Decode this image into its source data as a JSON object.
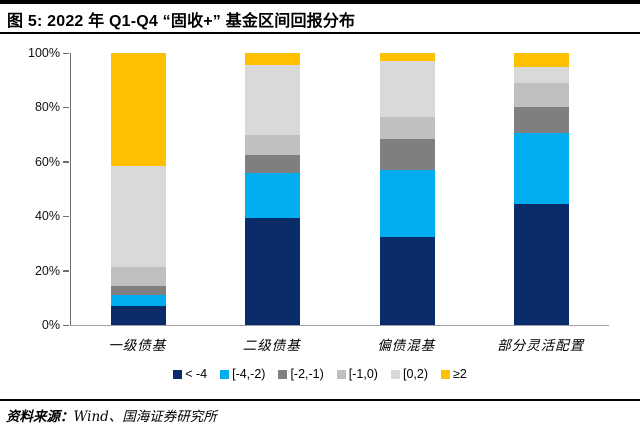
{
  "header": {
    "title": "图 5: 2022 年 Q1-Q4 “固收+” 基金区间回报分布"
  },
  "footer": {
    "source_label": "资料来源：",
    "source_text": "Wind、国海证券研究所"
  },
  "chart_data": {
    "type": "bar",
    "stacked": true,
    "percent_stacked": true,
    "title": "2022 年 Q1-Q4 “固收+” 基金区间回报分布",
    "xlabel": "",
    "ylabel": "",
    "ylim": [
      0,
      100
    ],
    "grid": false,
    "legend_position": "bottom",
    "y_ticks": [
      {
        "label": "100%",
        "value": 100
      },
      {
        "label": "80%",
        "value": 80
      },
      {
        "label": "60%",
        "value": 60
      },
      {
        "label": "40%",
        "value": 40
      },
      {
        "label": "20%",
        "value": 20
      },
      {
        "label": "0%",
        "value": 0
      }
    ],
    "categories": [
      "一级债基",
      "二级债基",
      "偏债混基",
      "部分灵活配置"
    ],
    "series": [
      {
        "name": "< -4",
        "color": "#0B2C6A",
        "values": [
          7,
          39.5,
          32.5,
          44.5
        ]
      },
      {
        "name": "[-4,-2)",
        "color": "#00AEEF",
        "values": [
          4,
          16.5,
          24.5,
          26
        ]
      },
      {
        "name": "[-2,-1)",
        "color": "#7F7F7F",
        "values": [
          3.5,
          6.5,
          11.5,
          9.5
        ]
      },
      {
        "name": "[-1,0)",
        "color": "#BFBFBF",
        "values": [
          7,
          7.5,
          8,
          9
        ]
      },
      {
        "name": "[0,2)",
        "color": "#D9D9D9",
        "values": [
          37,
          25.5,
          20.5,
          6
        ]
      },
      {
        "name": "≥2",
        "color": "#FFC000",
        "values": [
          41.5,
          4.5,
          3,
          5
        ]
      }
    ]
  }
}
